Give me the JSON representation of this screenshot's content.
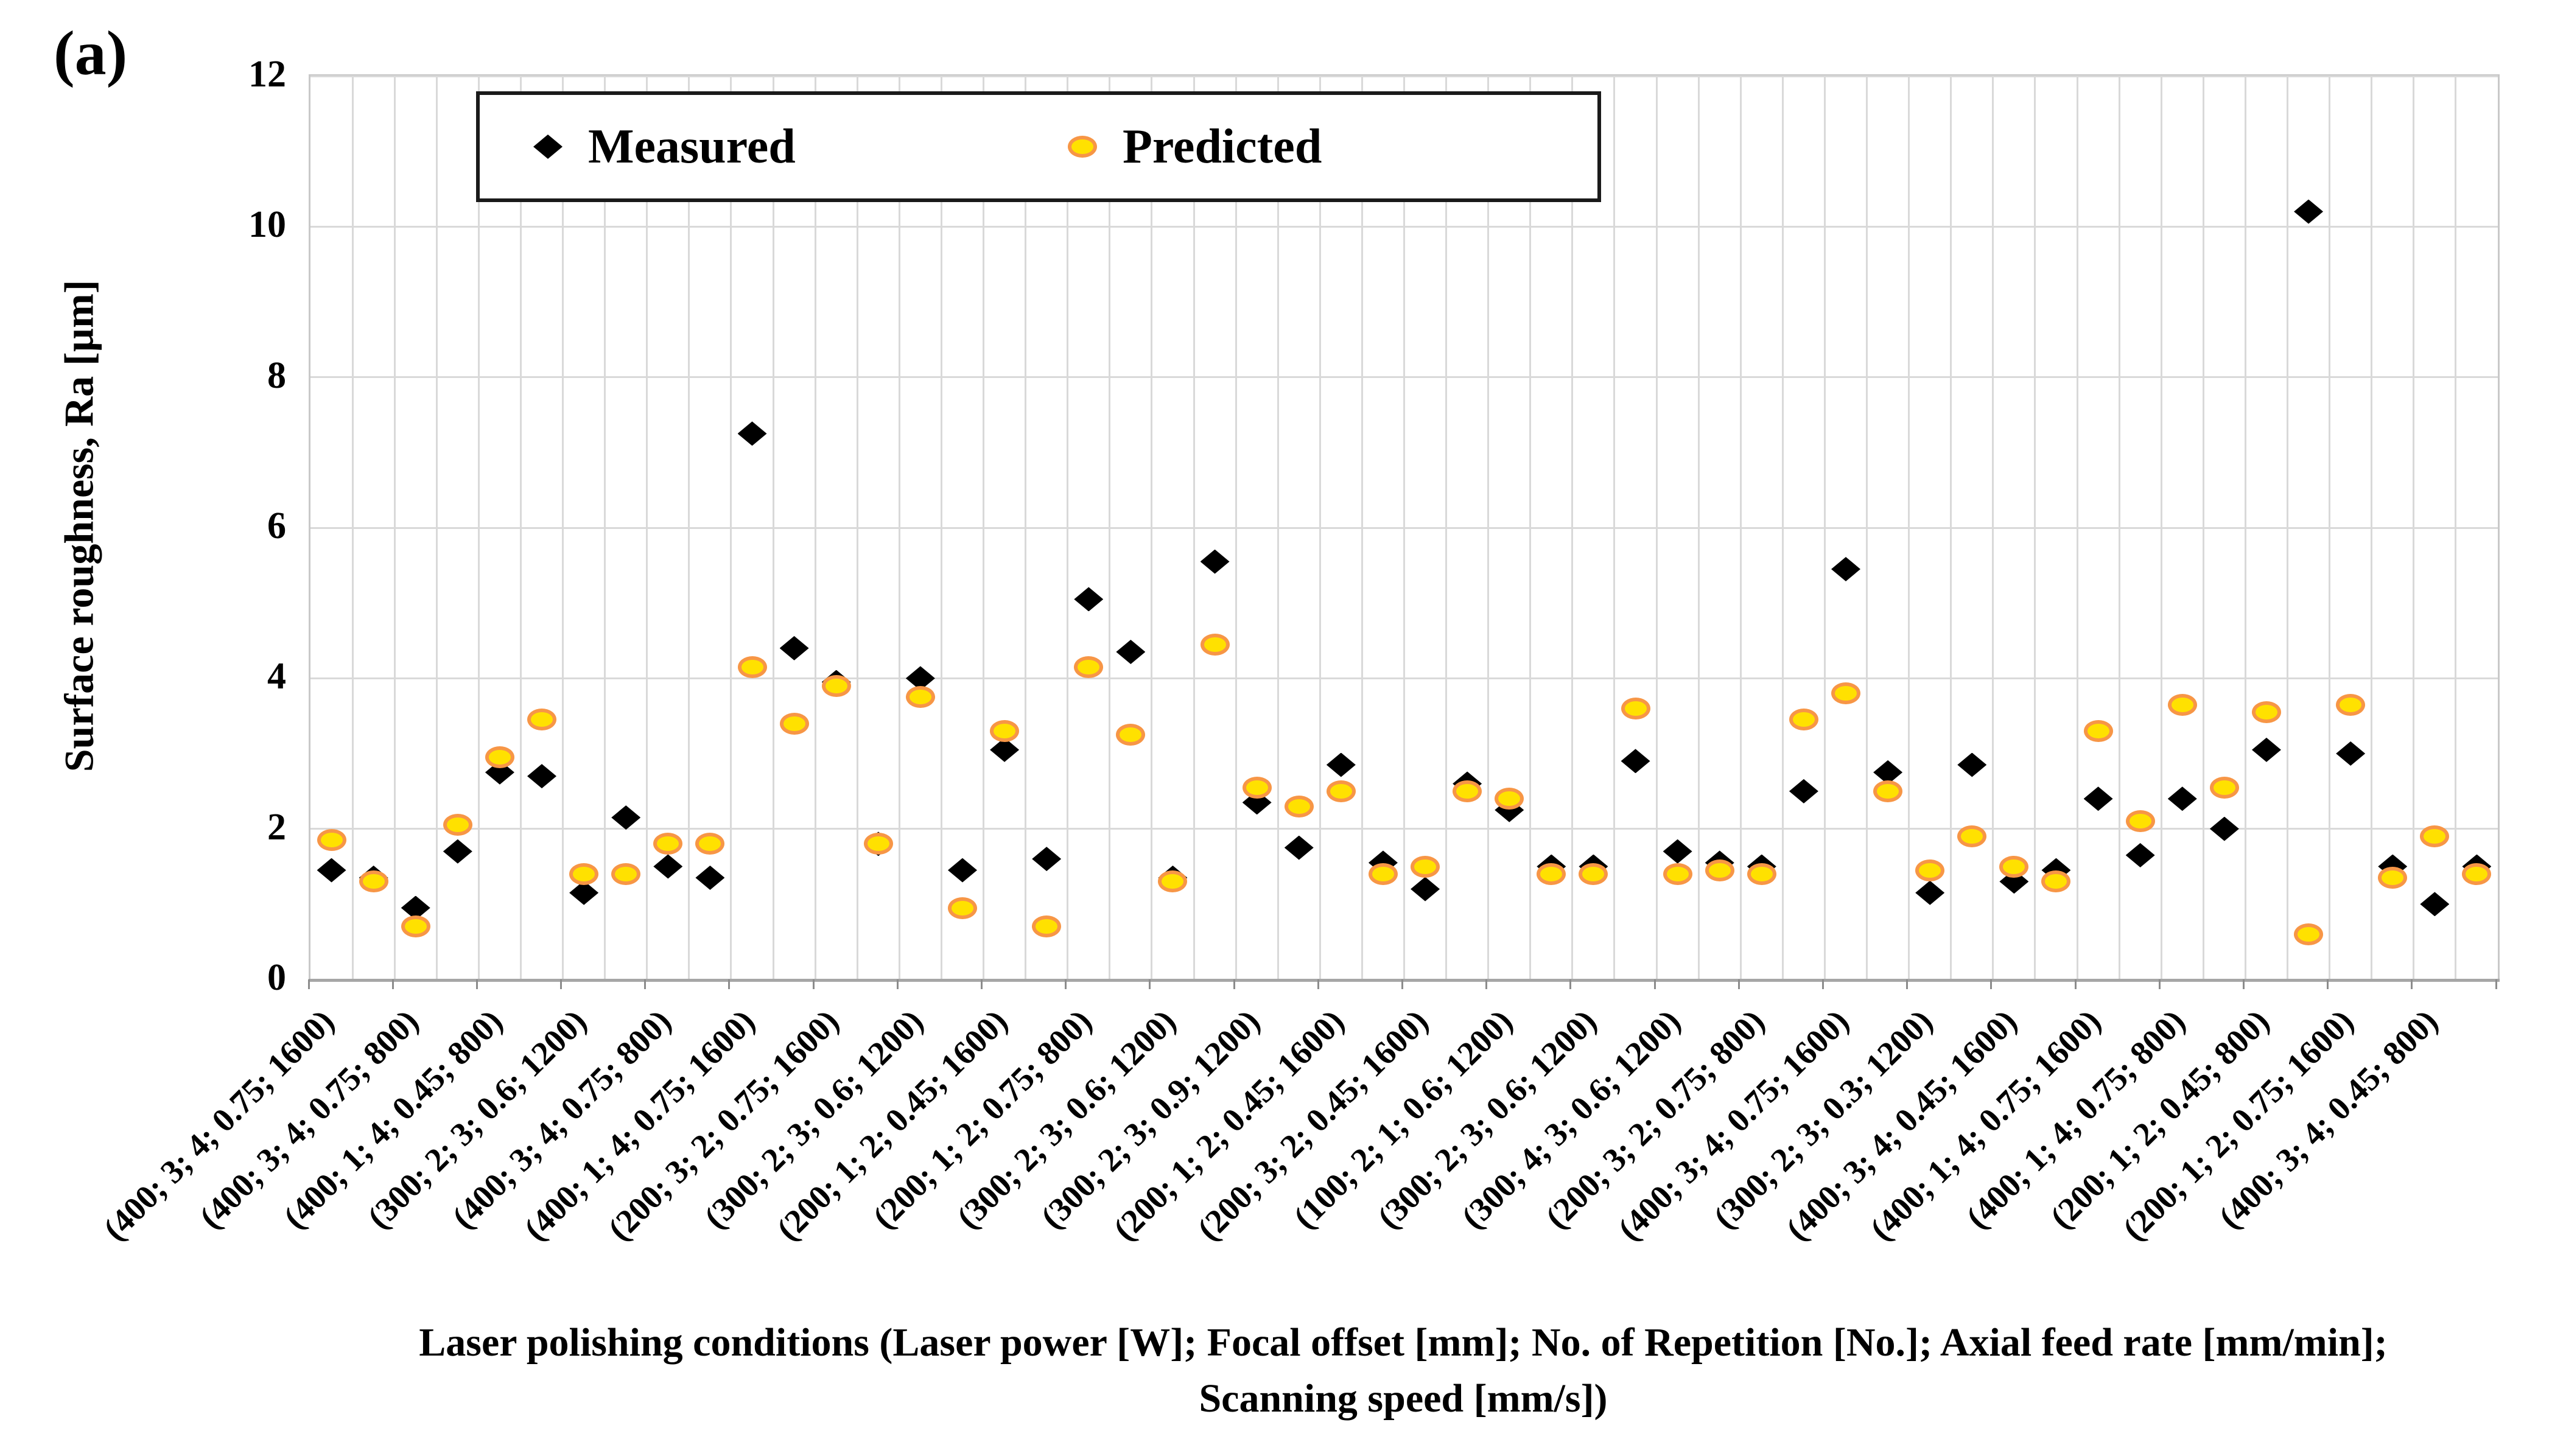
{
  "panel_label": "(a)",
  "legend": {
    "measured_label": "Measured",
    "predicted_label": "Predicted"
  },
  "colors": {
    "measured": "#000000",
    "predicted_fill": "#ffe100",
    "predicted_edge": "#f79646",
    "gridline": "#d9d9d9",
    "axis": "#a6a6a6"
  },
  "chart_data": {
    "type": "scatter",
    "title": "",
    "xlabel": "Laser polishing conditions (Laser power [W]; Focal offset [mm]; No. of Repetition [No.]; Axial feed rate [mm/min]; Scanning speed [mm/s])",
    "ylabel": "Surface roughness, Ra [µm]",
    "ylim": [
      0,
      12
    ],
    "yticks": [
      0,
      2,
      4,
      6,
      8,
      10,
      12
    ],
    "n_points": 52,
    "x_tick_labels": [
      "(400; 3; 4; 0.75; 1600)",
      "(400; 3; 4; 0.75; 800)",
      "(400; 1; 4; 0.45; 800)",
      "(300; 2; 3; 0.6; 1200)",
      "(400; 3; 4; 0.75; 800)",
      "(400; 1; 4; 0.75; 1600)",
      "(200; 3; 2; 0.75; 1600)",
      "(300; 2; 3; 0.6; 1200)",
      "(200; 1; 2; 0.45; 1600)",
      "(200; 1; 2; 0.75; 800)",
      "(300; 2; 3; 0.6; 1200)",
      "(300; 2; 3; 0.9; 1200)",
      "(200; 1; 2; 0.45; 1600)",
      "(200; 3; 2; 0.45; 1600)",
      "(100; 2; 1; 0.6; 1200)",
      "(300; 2; 3; 0.6; 1200)",
      "(300; 4; 3; 0.6; 1200)",
      "(200; 3; 2; 0.75; 800)",
      "(400; 3; 4; 0.75; 1600)",
      "(300; 2; 3; 0.3; 1200)",
      "(400; 3; 4; 0.45; 1600)",
      "(400; 1; 4; 0.75; 1600)",
      "(400; 1; 4; 0.75; 800)",
      "(200; 1; 2; 0.45; 800)",
      "(200; 1; 2; 0.75; 1600)",
      "(400; 3; 4; 0.45; 800)"
    ],
    "series": [
      {
        "name": "Measured",
        "marker": "diamond",
        "color": "#000000",
        "values": [
          1.45,
          1.35,
          0.95,
          1.7,
          2.75,
          2.7,
          1.15,
          2.15,
          1.5,
          1.35,
          7.25,
          4.4,
          3.95,
          1.8,
          4.0,
          1.45,
          3.05,
          1.6,
          5.05,
          4.35,
          1.35,
          5.55,
          2.35,
          1.75,
          2.85,
          1.55,
          1.2,
          2.6,
          2.25,
          1.5,
          1.5,
          2.9,
          1.7,
          1.55,
          1.5,
          2.5,
          5.45,
          2.75,
          1.15,
          2.85,
          1.3,
          1.45,
          2.4,
          1.65,
          2.4,
          2.0,
          3.05,
          10.2,
          3.0,
          1.5,
          1.0,
          1.5
        ]
      },
      {
        "name": "Predicted",
        "marker": "circle",
        "color": "#ffe100",
        "edge_color": "#f79646",
        "values": [
          1.85,
          1.3,
          0.7,
          2.05,
          2.95,
          3.45,
          1.4,
          1.4,
          1.8,
          1.8,
          4.15,
          3.4,
          3.9,
          1.8,
          3.75,
          0.95,
          3.3,
          0.7,
          4.15,
          3.25,
          1.3,
          4.45,
          2.55,
          2.3,
          2.5,
          1.4,
          1.5,
          2.5,
          2.4,
          1.4,
          1.4,
          3.6,
          1.4,
          1.45,
          1.4,
          3.45,
          3.8,
          2.5,
          1.45,
          1.9,
          1.5,
          1.3,
          3.3,
          2.1,
          3.65,
          2.55,
          3.55,
          0.6,
          3.65,
          1.35,
          1.9,
          1.4
        ]
      }
    ],
    "layout_hints": {
      "grid": "on",
      "vertical_gridline_per_point": true,
      "x_labels_every_n_points": 2,
      "x_label_rotation_deg": 45,
      "legend_position": "inside top-left",
      "marker_overlap_order": "predicted drawn on top of measured"
    }
  }
}
